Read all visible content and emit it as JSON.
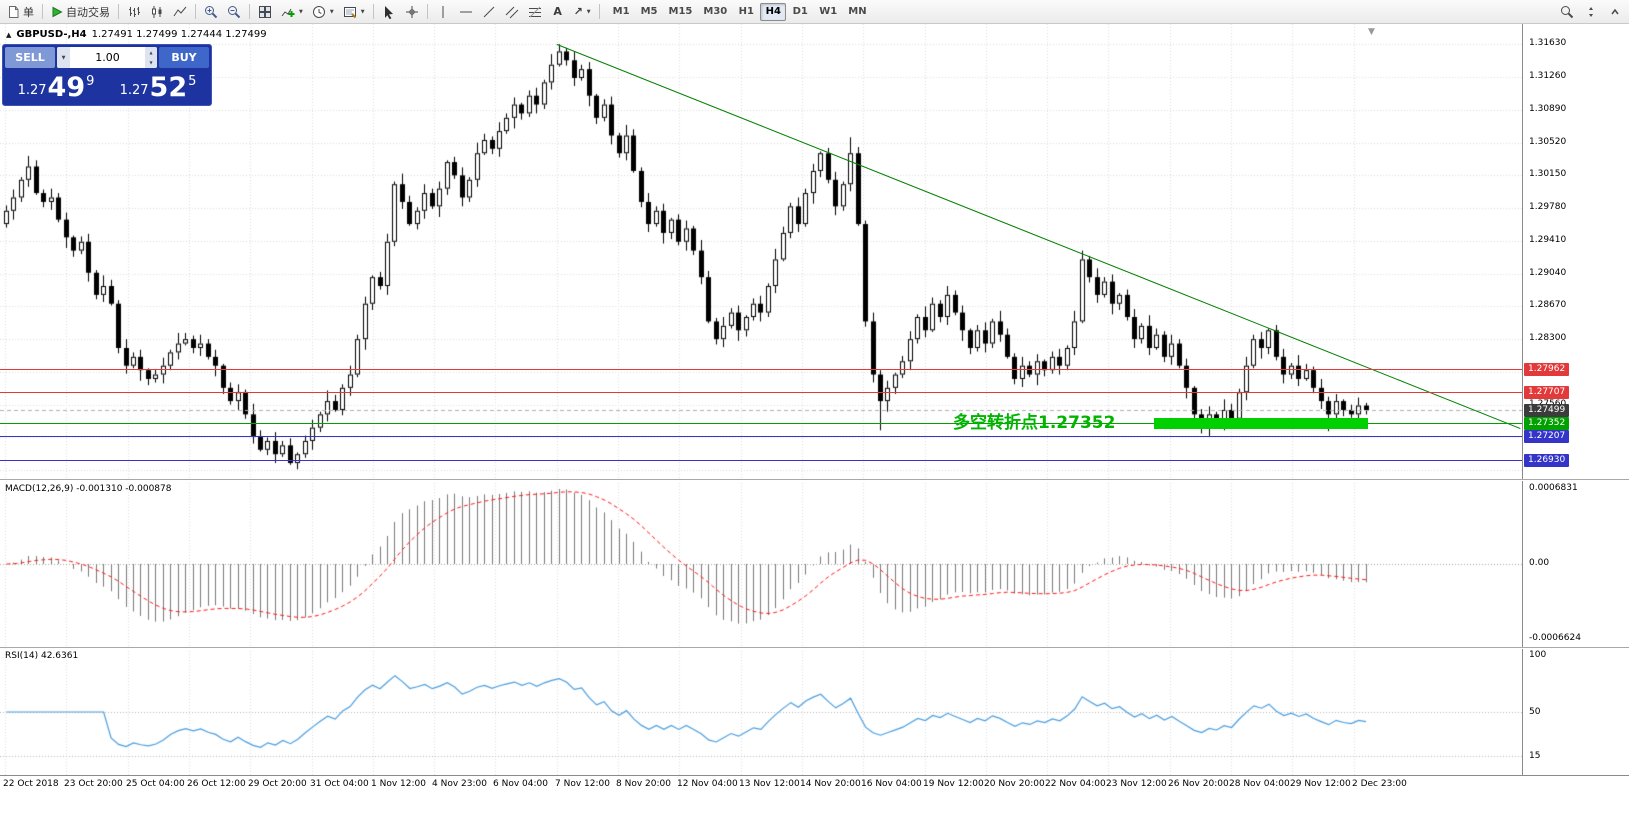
{
  "toolbar": {
    "order_label": "单",
    "autotrade_label": "自动交易",
    "timeframes": [
      "M1",
      "M5",
      "M15",
      "M30",
      "H1",
      "H4",
      "D1",
      "W1",
      "MN"
    ],
    "active_timeframe": "H4"
  },
  "icons": {
    "dropdown": "▼",
    "collapse_panel": "▲",
    "shift_marker": "▼",
    "text_tool": "A",
    "arrow_tool": "↗",
    "spin_up": "▲",
    "spin_down": "▼",
    "volume_dropdown": "▼"
  },
  "chart": {
    "title": "GBPUSD-,H4",
    "ohlc": "1.27491 1.27499 1.27444 1.27499"
  },
  "trade_panel": {
    "sell_label": "SELL",
    "buy_label": "BUY",
    "volume": "1.00",
    "sell_price": {
      "prefix": "1.27",
      "big": "49",
      "sup": "9"
    },
    "buy_price": {
      "prefix": "1.27",
      "big": "52",
      "sup": "5"
    }
  },
  "annotation": {
    "text": "多空转折点1.27352",
    "color": "#00b400",
    "bar": 127,
    "price": 1.2742
  },
  "levels": [
    {
      "text": "1.27962",
      "price": 1.27962,
      "color": "#e23a3a"
    },
    {
      "text": "1.27707",
      "price": 1.27707,
      "color": "#e23a3a"
    },
    {
      "text": "1.27352",
      "price": 1.27352,
      "color": "#00a000"
    },
    {
      "text": "1.27207",
      "price": 1.27207,
      "color": "#3434c8"
    },
    {
      "text": "1.26930",
      "price": 1.2693,
      "color": "#3434c8"
    }
  ],
  "current_price": {
    "text": "1.27499",
    "price": 1.27499,
    "color": "#3c3c3c"
  },
  "price_axis": {
    "labels": [
      {
        "text": "1.31630",
        "price": 1.3163
      },
      {
        "text": "1.31260",
        "price": 1.3126
      },
      {
        "text": "1.30890",
        "price": 1.3089
      },
      {
        "text": "1.30520",
        "price": 1.3052
      },
      {
        "text": "1.30150",
        "price": 1.3015
      },
      {
        "text": "1.29780",
        "price": 1.2978
      },
      {
        "text": "1.29410",
        "price": 1.2941
      },
      {
        "text": "1.29040",
        "price": 1.2904
      },
      {
        "text": "1.28670",
        "price": 1.2867
      },
      {
        "text": "1.28300",
        "price": 1.283
      },
      {
        "text": "1.27560",
        "price": 1.2756
      }
    ]
  },
  "time_axis": {
    "labels": [
      "22 Oct 2018",
      "23 Oct 20:00",
      "25 Oct 04:00",
      "26 Oct 12:00",
      "29 Oct 20:00",
      "31 Oct 04:00",
      "1 Nov 12:00",
      "4 Nov 23:00",
      "6 Nov 04:00",
      "7 Nov 12:00",
      "8 Nov 20:00",
      "12 Nov 04:00",
      "13 Nov 12:00",
      "14 Nov 20:00",
      "16 Nov 04:00",
      "19 Nov 12:00",
      "20 Nov 20:00",
      "22 Nov 04:00",
      "23 Nov 12:00",
      "26 Nov 20:00",
      "28 Nov 04:00",
      "29 Nov 12:00",
      "2 Dec 23:00"
    ]
  },
  "indicators": {
    "macd": {
      "label": "MACD(12,26,9)",
      "values": "-0.001310 -0.000878",
      "scale": [
        "0.0006831",
        "0.00",
        "-0.0006624"
      ],
      "fast": 12,
      "slow": 26,
      "signal": 9,
      "hist_color": "#7a7a7a",
      "signal_color": "#ff1a1a"
    },
    "rsi": {
      "label": "RSI(14)",
      "value": "42.6361",
      "period": 14,
      "scale": [
        {
          "text": "100",
          "value": 100
        },
        {
          "text": "50",
          "value": 50
        },
        {
          "text": "15",
          "value": 15
        }
      ],
      "dotted_levels": [
        50,
        15
      ],
      "line_color": "#4a9ee0"
    }
  },
  "chart_data": {
    "type": "candlestick",
    "symbol": "GBPUSD",
    "period": "H4",
    "price_range": {
      "top": 1.3186,
      "bottom": 1.2672
    },
    "first_open": 1.296,
    "closes": [
      1.2975,
      1.299,
      1.301,
      1.3025,
      1.2995,
      1.2985,
      1.299,
      1.2965,
      1.2945,
      1.293,
      1.294,
      1.2905,
      1.288,
      1.289,
      1.287,
      1.282,
      1.28,
      1.281,
      1.2795,
      1.2785,
      1.279,
      1.28,
      1.2815,
      1.2825,
      1.283,
      1.282,
      1.2825,
      1.281,
      1.28,
      1.2775,
      1.276,
      1.277,
      1.2745,
      1.272,
      1.2705,
      1.2715,
      1.27,
      1.271,
      1.269,
      1.27,
      1.2715,
      1.273,
      1.2745,
      1.276,
      1.275,
      1.2775,
      1.279,
      1.283,
      1.287,
      1.29,
      1.289,
      1.294,
      1.3005,
      1.2985,
      1.296,
      1.2975,
      1.2995,
      1.298,
      1.3,
      1.303,
      1.3015,
      1.299,
      1.301,
      1.304,
      1.3055,
      1.3045,
      1.3065,
      1.308,
      1.3095,
      1.3085,
      1.3105,
      1.3095,
      1.312,
      1.314,
      1.3155,
      1.3145,
      1.3125,
      1.3135,
      1.3105,
      1.308,
      1.3095,
      1.306,
      1.304,
      1.306,
      1.302,
      1.2985,
      1.296,
      1.2975,
      1.295,
      1.2965,
      1.294,
      1.2955,
      1.293,
      1.29,
      1.285,
      1.283,
      1.2845,
      1.286,
      1.284,
      1.2855,
      1.287,
      1.286,
      1.289,
      1.292,
      1.295,
      1.298,
      1.296,
      1.2995,
      1.302,
      1.304,
      1.301,
      1.298,
      1.3005,
      1.304,
      1.296,
      1.285,
      1.279,
      1.276,
      1.2775,
      1.279,
      1.2805,
      1.283,
      1.2855,
      1.284,
      1.287,
      1.2855,
      1.288,
      1.286,
      1.284,
      1.282,
      1.284,
      1.2825,
      1.285,
      1.2835,
      1.281,
      1.2785,
      1.28,
      1.279,
      1.2805,
      1.2795,
      1.281,
      1.28,
      1.282,
      1.285,
      1.292,
      1.29,
      1.288,
      1.2895,
      1.287,
      1.288,
      1.2855,
      1.283,
      1.2845,
      1.282,
      1.2835,
      1.281,
      1.2825,
      1.28,
      1.2775,
      1.2745,
      1.273,
      1.2745,
      1.2735,
      1.275,
      1.274,
      1.277,
      1.28,
      1.283,
      1.282,
      1.284,
      1.281,
      1.279,
      1.28,
      1.2785,
      1.2795,
      1.2775,
      1.276,
      1.2745,
      1.276,
      1.275,
      1.2745,
      1.2755,
      1.27499
    ],
    "wick_pattern_pips": [
      6,
      9,
      3,
      12,
      7,
      4,
      10,
      5,
      8,
      2
    ],
    "high_overrides": {
      "74": 1.31632,
      "113": 1.3058,
      "144": 1.293
    },
    "low_overrides": {
      "36": 1.269,
      "38": 1.2688,
      "117": 1.2727,
      "160": 1.27235,
      "177": 1.2726
    },
    "h_grid_prices": [
      1.3163,
      1.3126,
      1.3089,
      1.3052,
      1.3015,
      1.2978,
      1.2941,
      1.2904,
      1.2867,
      1.283,
      1.2793,
      1.2756,
      1.2719,
      1.2682
    ],
    "trendline": {
      "bar1": 74,
      "price1": 1.3163,
      "bar2": 203,
      "price2": 1.2729,
      "color": "#008000"
    },
    "highlight_rect": {
      "bar1": 154,
      "bar2": 182,
      "price_top": 1.2741,
      "price_bottom": 1.2729,
      "color": "#00cf00"
    },
    "candle_colors": {
      "up_fill": "#ffffff",
      "down_fill": "#000000",
      "outline": "#000000"
    },
    "grid_color": "#dedede"
  }
}
